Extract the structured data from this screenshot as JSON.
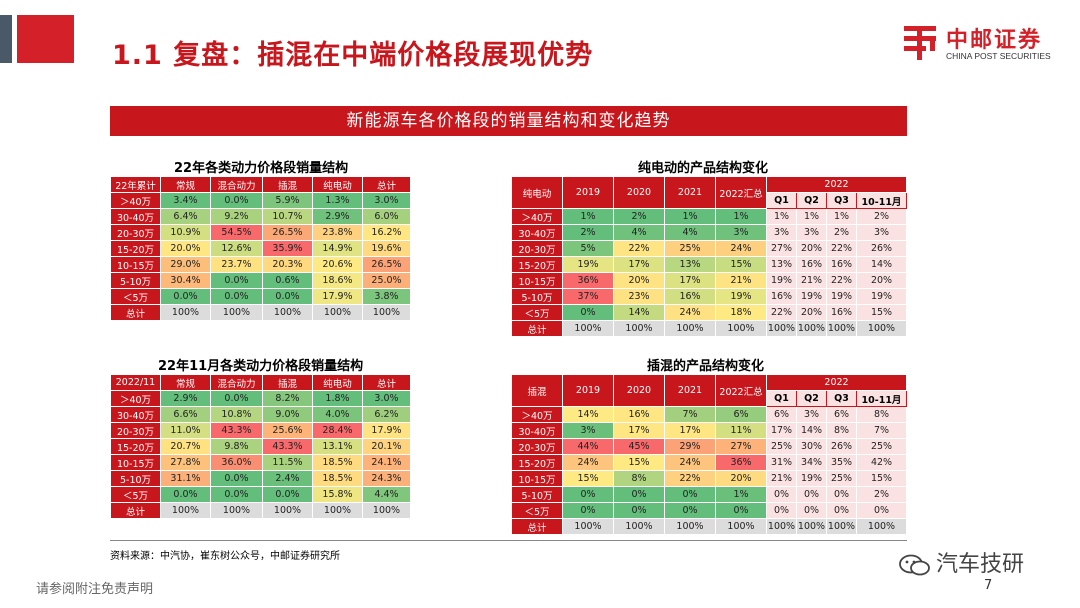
{
  "header": {
    "title": "1.1 复盘：插混在中端价格段展现优势",
    "logo_cn": "中邮证券",
    "logo_en": "CHINA POST SECURITIES"
  },
  "banner": "新能源车各价格段的销量结构和变化趋势",
  "table1": {
    "title": "22年各类动力价格段销量结构",
    "headers": [
      "22年累计",
      "常规",
      "混合动力",
      "插混",
      "纯电动",
      "总计"
    ],
    "rows": [
      {
        "label": "＞40万",
        "cells": [
          {
            "v": "3.4%",
            "c": "#63be7b"
          },
          {
            "v": "0.0%",
            "c": "#63be7b"
          },
          {
            "v": "5.9%",
            "c": "#7dc57c"
          },
          {
            "v": "1.3%",
            "c": "#63be7b"
          },
          {
            "v": "3.0%",
            "c": "#63be7b"
          }
        ]
      },
      {
        "label": "30-40万",
        "cells": [
          {
            "v": "6.4%",
            "c": "#a6d17e"
          },
          {
            "v": "9.2%",
            "c": "#a9d27f"
          },
          {
            "v": "10.7%",
            "c": "#b8d780"
          },
          {
            "v": "2.9%",
            "c": "#6fc17c"
          },
          {
            "v": "6.0%",
            "c": "#a5d17e"
          }
        ]
      },
      {
        "label": "20-30万",
        "cells": [
          {
            "v": "10.9%",
            "c": "#d4df82"
          },
          {
            "v": "54.5%",
            "c": "#f8696b"
          },
          {
            "v": "26.5%",
            "c": "#fba877"
          },
          {
            "v": "23.8%",
            "c": "#fdd17f"
          },
          {
            "v": "16.2%",
            "c": "#fee783"
          }
        ]
      },
      {
        "label": "15-20万",
        "cells": [
          {
            "v": "20.0%",
            "c": "#fee683"
          },
          {
            "v": "12.6%",
            "c": "#cbdc81"
          },
          {
            "v": "35.9%",
            "c": "#f8696b"
          },
          {
            "v": "14.9%",
            "c": "#e0e383"
          },
          {
            "v": "19.6%",
            "c": "#fed980"
          }
        ]
      },
      {
        "label": "10-15万",
        "cells": [
          {
            "v": "29.0%",
            "c": "#fcbf7b"
          },
          {
            "v": "23.7%",
            "c": "#fee282"
          },
          {
            "v": "20.3%",
            "c": "#fed980"
          },
          {
            "v": "20.6%",
            "c": "#feea84"
          },
          {
            "v": "26.5%",
            "c": "#fba276"
          }
        ]
      },
      {
        "label": "5-10万",
        "cells": [
          {
            "v": "30.4%",
            "c": "#fcb97a"
          },
          {
            "v": "0.0%",
            "c": "#63be7b"
          },
          {
            "v": "0.6%",
            "c": "#63be7b"
          },
          {
            "v": "18.6%",
            "c": "#f4e884"
          },
          {
            "v": "25.0%",
            "c": "#fcaf79"
          }
        ]
      },
      {
        "label": "＜5万",
        "cells": [
          {
            "v": "0.0%",
            "c": "#63be7b"
          },
          {
            "v": "0.0%",
            "c": "#63be7b"
          },
          {
            "v": "0.0%",
            "c": "#63be7b"
          },
          {
            "v": "17.9%",
            "c": "#eee784"
          },
          {
            "v": "3.8%",
            "c": "#7cc57c"
          }
        ]
      },
      {
        "label": "总计",
        "cells": [
          {
            "v": "100%",
            "c": "#dcdcdc"
          },
          {
            "v": "100%",
            "c": "#dcdcdc"
          },
          {
            "v": "100%",
            "c": "#dcdcdc"
          },
          {
            "v": "100%",
            "c": "#dcdcdc"
          },
          {
            "v": "100%",
            "c": "#dcdcdc"
          }
        ]
      }
    ]
  },
  "table2": {
    "title": "22年11月各类动力价格段销量结构",
    "headers": [
      "2022/11",
      "常规",
      "混合动力",
      "插混",
      "纯电动",
      "总计"
    ],
    "rows": [
      {
        "label": "＞40万",
        "cells": [
          {
            "v": "2.9%",
            "c": "#63be7b"
          },
          {
            "v": "0.0%",
            "c": "#63be7b"
          },
          {
            "v": "8.2%",
            "c": "#85c77d"
          },
          {
            "v": "1.8%",
            "c": "#63be7b"
          },
          {
            "v": "3.0%",
            "c": "#63be7b"
          }
        ]
      },
      {
        "label": "30-40万",
        "cells": [
          {
            "v": "6.6%",
            "c": "#a2d07e"
          },
          {
            "v": "10.8%",
            "c": "#b5d680"
          },
          {
            "v": "9.0%",
            "c": "#8fca7d"
          },
          {
            "v": "4.0%",
            "c": "#7ac47c"
          },
          {
            "v": "6.2%",
            "c": "#9fcf7e"
          }
        ]
      },
      {
        "label": "20-30万",
        "cells": [
          {
            "v": "11.0%",
            "c": "#d3df82"
          },
          {
            "v": "43.3%",
            "c": "#f8696b"
          },
          {
            "v": "25.6%",
            "c": "#fcb479"
          },
          {
            "v": "28.4%",
            "c": "#f8696b"
          },
          {
            "v": "17.9%",
            "c": "#fee382"
          }
        ]
      },
      {
        "label": "15-20万",
        "cells": [
          {
            "v": "20.7%",
            "c": "#fee282"
          },
          {
            "v": "9.8%",
            "c": "#abd37f"
          },
          {
            "v": "43.3%",
            "c": "#f8696b"
          },
          {
            "v": "13.1%",
            "c": "#d6e082"
          },
          {
            "v": "20.1%",
            "c": "#fed380"
          }
        ]
      },
      {
        "label": "10-15万",
        "cells": [
          {
            "v": "27.8%",
            "c": "#fcc27c"
          },
          {
            "v": "36.0%",
            "c": "#fa8e72"
          },
          {
            "v": "11.5%",
            "c": "#a9d27f"
          },
          {
            "v": "18.5%",
            "c": "#fedb81"
          },
          {
            "v": "24.1%",
            "c": "#fcb279"
          }
        ]
      },
      {
        "label": "5-10万",
        "cells": [
          {
            "v": "31.1%",
            "c": "#fcb079"
          },
          {
            "v": "0.0%",
            "c": "#63be7b"
          },
          {
            "v": "2.4%",
            "c": "#6ac07b"
          },
          {
            "v": "18.5%",
            "c": "#fedb81"
          },
          {
            "v": "24.3%",
            "c": "#fcb079"
          }
        ]
      },
      {
        "label": "＜5万",
        "cells": [
          {
            "v": "0.0%",
            "c": "#63be7b"
          },
          {
            "v": "0.0%",
            "c": "#63be7b"
          },
          {
            "v": "0.0%",
            "c": "#63be7b"
          },
          {
            "v": "15.8%",
            "c": "#ede683"
          },
          {
            "v": "4.4%",
            "c": "#80c67c"
          }
        ]
      },
      {
        "label": "总计",
        "cells": [
          {
            "v": "100%",
            "c": "#dcdcdc"
          },
          {
            "v": "100%",
            "c": "#dcdcdc"
          },
          {
            "v": "100%",
            "c": "#dcdcdc"
          },
          {
            "v": "100%",
            "c": "#dcdcdc"
          },
          {
            "v": "100%",
            "c": "#dcdcdc"
          }
        ]
      }
    ]
  },
  "table3": {
    "title": "纯电动的产品结构变化",
    "corner": "纯电动",
    "years": [
      "2019",
      "2020",
      "2021",
      "2022汇总"
    ],
    "group": "2022",
    "quarters": [
      "Q1",
      "Q2",
      "Q3",
      "10-11月"
    ],
    "rows": [
      {
        "label": "＞40万",
        "cells": [
          {
            "v": "1%",
            "c": "#63be7b"
          },
          {
            "v": "2%",
            "c": "#63be7b"
          },
          {
            "v": "1%",
            "c": "#63be7b"
          },
          {
            "v": "1%",
            "c": "#63be7b"
          },
          {
            "v": "1%",
            "c": "#fbe2e2"
          },
          {
            "v": "1%",
            "c": "#fbe2e2"
          },
          {
            "v": "1%",
            "c": "#fbe2e2"
          },
          {
            "v": "2%",
            "c": "#fbe2e2"
          }
        ]
      },
      {
        "label": "30-40万",
        "cells": [
          {
            "v": "2%",
            "c": "#63be7b"
          },
          {
            "v": "4%",
            "c": "#6fc17c"
          },
          {
            "v": "4%",
            "c": "#6fc17c"
          },
          {
            "v": "3%",
            "c": "#6fc17c"
          },
          {
            "v": "3%",
            "c": "#fbe2e2"
          },
          {
            "v": "3%",
            "c": "#fbe2e2"
          },
          {
            "v": "2%",
            "c": "#fbe2e2"
          },
          {
            "v": "3%",
            "c": "#fbe2e2"
          }
        ]
      },
      {
        "label": "20-30万",
        "cells": [
          {
            "v": "5%",
            "c": "#7cc57c"
          },
          {
            "v": "22%",
            "c": "#fee482"
          },
          {
            "v": "25%",
            "c": "#fdd07f"
          },
          {
            "v": "24%",
            "c": "#fdd07f"
          },
          {
            "v": "27%",
            "c": "#fbe2e2"
          },
          {
            "v": "20%",
            "c": "#fbe2e2"
          },
          {
            "v": "22%",
            "c": "#fbe2e2"
          },
          {
            "v": "26%",
            "c": "#fbe2e2"
          }
        ]
      },
      {
        "label": "15-20万",
        "cells": [
          {
            "v": "19%",
            "c": "#e6e583"
          },
          {
            "v": "17%",
            "c": "#dce182"
          },
          {
            "v": "13%",
            "c": "#b7d780"
          },
          {
            "v": "15%",
            "c": "#c8dc81"
          },
          {
            "v": "13%",
            "c": "#fbe2e2"
          },
          {
            "v": "16%",
            "c": "#fbe2e2"
          },
          {
            "v": "16%",
            "c": "#fbe2e2"
          },
          {
            "v": "14%",
            "c": "#fbe2e2"
          }
        ]
      },
      {
        "label": "10-15万",
        "cells": [
          {
            "v": "36%",
            "c": "#f8696b"
          },
          {
            "v": "20%",
            "c": "#fee382"
          },
          {
            "v": "17%",
            "c": "#dce182"
          },
          {
            "v": "21%",
            "c": "#fee382"
          },
          {
            "v": "19%",
            "c": "#fbe2e2"
          },
          {
            "v": "21%",
            "c": "#fbe2e2"
          },
          {
            "v": "22%",
            "c": "#fbe2e2"
          },
          {
            "v": "20%",
            "c": "#fbe2e2"
          }
        ]
      },
      {
        "label": "5-10万",
        "cells": [
          {
            "v": "37%",
            "c": "#f8696b"
          },
          {
            "v": "23%",
            "c": "#fee182"
          },
          {
            "v": "16%",
            "c": "#d1de82"
          },
          {
            "v": "19%",
            "c": "#e6e583"
          },
          {
            "v": "16%",
            "c": "#fbe2e2"
          },
          {
            "v": "19%",
            "c": "#fbe2e2"
          },
          {
            "v": "19%",
            "c": "#fbe2e2"
          },
          {
            "v": "19%",
            "c": "#fbe2e2"
          }
        ]
      },
      {
        "label": "＜5万",
        "cells": [
          {
            "v": "0%",
            "c": "#63be7b"
          },
          {
            "v": "14%",
            "c": "#c3da81"
          },
          {
            "v": "24%",
            "c": "#fee182"
          },
          {
            "v": "18%",
            "c": "#fee983"
          },
          {
            "v": "22%",
            "c": "#fbe2e2"
          },
          {
            "v": "20%",
            "c": "#fbe2e2"
          },
          {
            "v": "16%",
            "c": "#fbe2e2"
          },
          {
            "v": "15%",
            "c": "#fbe2e2"
          }
        ]
      },
      {
        "label": "总计",
        "cells": [
          {
            "v": "100%",
            "c": "#dcdcdc"
          },
          {
            "v": "100%",
            "c": "#dcdcdc"
          },
          {
            "v": "100%",
            "c": "#dcdcdc"
          },
          {
            "v": "100%",
            "c": "#dcdcdc"
          },
          {
            "v": "100%",
            "c": "#dcdcdc"
          },
          {
            "v": "100%",
            "c": "#dcdcdc"
          },
          {
            "v": "100%",
            "c": "#dcdcdc"
          },
          {
            "v": "100%",
            "c": "#dcdcdc"
          }
        ]
      }
    ]
  },
  "table4": {
    "title": "插混的产品结构变化",
    "corner": "插混",
    "years": [
      "2019",
      "2020",
      "2021",
      "2022汇总"
    ],
    "group": "2022",
    "quarters": [
      "Q1",
      "Q2",
      "Q3",
      "10-11月"
    ],
    "rows": [
      {
        "label": "＞40万",
        "cells": [
          {
            "v": "14%",
            "c": "#feea84"
          },
          {
            "v": "16%",
            "c": "#fee683"
          },
          {
            "v": "7%",
            "c": "#a3d07e"
          },
          {
            "v": "6%",
            "c": "#95cc7d"
          },
          {
            "v": "6%",
            "c": "#fbe2e2"
          },
          {
            "v": "3%",
            "c": "#fbe2e2"
          },
          {
            "v": "6%",
            "c": "#fbe2e2"
          },
          {
            "v": "8%",
            "c": "#fbe2e2"
          }
        ]
      },
      {
        "label": "30-40万",
        "cells": [
          {
            "v": "3%",
            "c": "#6ac07b"
          },
          {
            "v": "17%",
            "c": "#fee683"
          },
          {
            "v": "17%",
            "c": "#fee683"
          },
          {
            "v": "11%",
            "c": "#d4df82"
          },
          {
            "v": "17%",
            "c": "#fbe2e2"
          },
          {
            "v": "14%",
            "c": "#fbe2e2"
          },
          {
            "v": "8%",
            "c": "#fbe2e2"
          },
          {
            "v": "7%",
            "c": "#fbe2e2"
          }
        ]
      },
      {
        "label": "20-30万",
        "cells": [
          {
            "v": "44%",
            "c": "#f8696b"
          },
          {
            "v": "45%",
            "c": "#f8696b"
          },
          {
            "v": "29%",
            "c": "#fba276"
          },
          {
            "v": "27%",
            "c": "#fcb279"
          },
          {
            "v": "25%",
            "c": "#fbe2e2"
          },
          {
            "v": "30%",
            "c": "#fbe2e2"
          },
          {
            "v": "26%",
            "c": "#fbe2e2"
          },
          {
            "v": "25%",
            "c": "#fbe2e2"
          }
        ]
      },
      {
        "label": "15-20万",
        "cells": [
          {
            "v": "24%",
            "c": "#fcc47c"
          },
          {
            "v": "15%",
            "c": "#fee983"
          },
          {
            "v": "24%",
            "c": "#fcc47c"
          },
          {
            "v": "36%",
            "c": "#f8696b"
          },
          {
            "v": "31%",
            "c": "#fbe2e2"
          },
          {
            "v": "34%",
            "c": "#fbe2e2"
          },
          {
            "v": "35%",
            "c": "#fbe2e2"
          },
          {
            "v": "42%",
            "c": "#fbe2e2"
          }
        ]
      },
      {
        "label": "10-15万",
        "cells": [
          {
            "v": "15%",
            "c": "#fee983"
          },
          {
            "v": "8%",
            "c": "#b0d47f"
          },
          {
            "v": "22%",
            "c": "#fdd17f"
          },
          {
            "v": "20%",
            "c": "#fedb81"
          },
          {
            "v": "21%",
            "c": "#fbe2e2"
          },
          {
            "v": "19%",
            "c": "#fbe2e2"
          },
          {
            "v": "25%",
            "c": "#fbe2e2"
          },
          {
            "v": "15%",
            "c": "#fbe2e2"
          }
        ]
      },
      {
        "label": "5-10万",
        "cells": [
          {
            "v": "0%",
            "c": "#63be7b"
          },
          {
            "v": "0%",
            "c": "#63be7b"
          },
          {
            "v": "0%",
            "c": "#63be7b"
          },
          {
            "v": "1%",
            "c": "#6ac07b"
          },
          {
            "v": "0%",
            "c": "#fbe2e2"
          },
          {
            "v": "0%",
            "c": "#fbe2e2"
          },
          {
            "v": "0%",
            "c": "#fbe2e2"
          },
          {
            "v": "2%",
            "c": "#fbe2e2"
          }
        ]
      },
      {
        "label": "＜5万",
        "cells": [
          {
            "v": "0%",
            "c": "#63be7b"
          },
          {
            "v": "0%",
            "c": "#63be7b"
          },
          {
            "v": "0%",
            "c": "#63be7b"
          },
          {
            "v": "0%",
            "c": "#63be7b"
          },
          {
            "v": "0%",
            "c": "#fbe2e2"
          },
          {
            "v": "0%",
            "c": "#fbe2e2"
          },
          {
            "v": "0%",
            "c": "#fbe2e2"
          },
          {
            "v": "0%",
            "c": "#fbe2e2"
          }
        ]
      },
      {
        "label": "总计",
        "cells": [
          {
            "v": "100%",
            "c": "#dcdcdc"
          },
          {
            "v": "100%",
            "c": "#dcdcdc"
          },
          {
            "v": "100%",
            "c": "#dcdcdc"
          },
          {
            "v": "100%",
            "c": "#dcdcdc"
          },
          {
            "v": "100%",
            "c": "#dcdcdc"
          },
          {
            "v": "100%",
            "c": "#dcdcdc"
          },
          {
            "v": "100%",
            "c": "#dcdcdc"
          },
          {
            "v": "100%",
            "c": "#dcdcdc"
          }
        ]
      }
    ]
  },
  "source": "资料来源：中汽协，崔东树公众号，中邮证券研究所",
  "footer": "请参阅附注免责声明",
  "page_number": "7",
  "watermark": "汽车技研"
}
